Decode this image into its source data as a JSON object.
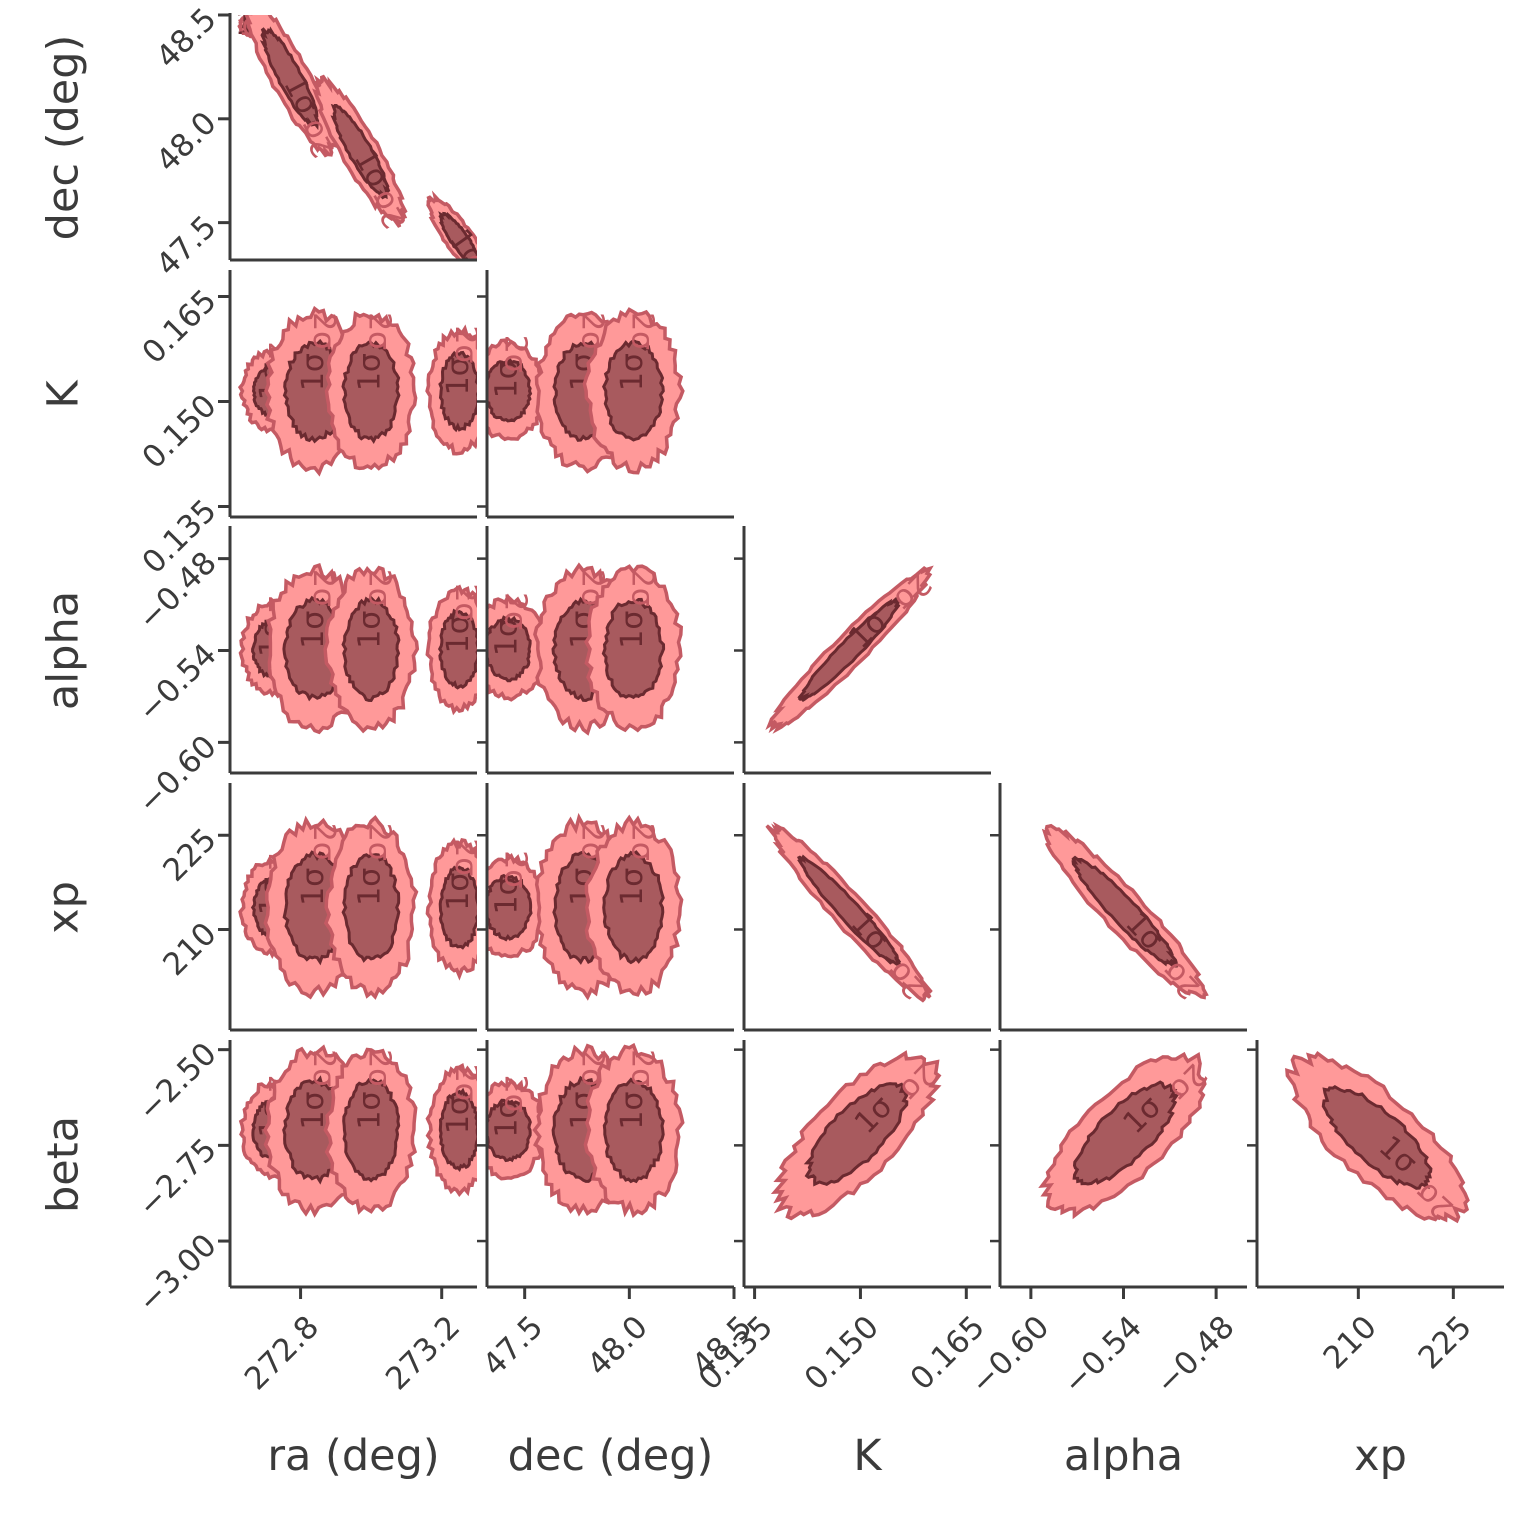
{
  "chart_data": {
    "type": "corner",
    "parameters": [
      {
        "key": "ra",
        "label": "ra (deg)",
        "range": [
          272.6,
          273.3
        ],
        "ticks": [
          "272.8",
          "273.2"
        ],
        "tick_values": [
          272.8,
          273.2
        ]
      },
      {
        "key": "dec",
        "label": "dec (deg)",
        "range": [
          47.32,
          48.5
        ],
        "ticks": [
          "47.5",
          "48.0",
          "48.5"
        ],
        "tick_values": [
          47.5,
          48.0,
          48.5
        ]
      },
      {
        "key": "K",
        "label": "K",
        "range": [
          0.1335,
          0.1685
        ],
        "ticks": [
          "0.135",
          "0.150",
          "0.165"
        ],
        "tick_values": [
          0.135,
          0.15,
          0.165
        ]
      },
      {
        "key": "alpha",
        "label": "alpha",
        "range": [
          -0.62,
          -0.46
        ],
        "ticks": [
          "−0.60",
          "−0.54",
          "−0.48"
        ],
        "tick_values": [
          -0.6,
          -0.54,
          -0.48
        ]
      },
      {
        "key": "xp",
        "label": "xp",
        "range": [
          194,
          233
        ],
        "ticks": [
          "210",
          "225"
        ],
        "tick_values": [
          210,
          225
        ]
      },
      {
        "key": "beta",
        "label": "beta",
        "range": [
          -3.12,
          -2.48
        ],
        "ticks": [
          "−2.50",
          "−2.75",
          "−3.00"
        ],
        "tick_values": [
          -2.5,
          -2.75,
          -3.0
        ]
      }
    ],
    "contour_levels": [
      "1σ",
      "2σ"
    ],
    "colors": {
      "fill_outer": "#ff9999",
      "line_outer": "#c45a63",
      "fill_inner": "#a85a5e",
      "line_inner": "#6b2a30",
      "axis": "#3b3b3b"
    },
    "panels": [
      {
        "x": "ra",
        "y": "dec",
        "blobs": [
          {
            "c": [
              272.66,
              48.45
            ],
            "s": [
              0.013,
              0.02
            ],
            "r": 0
          },
          {
            "c": [
              272.77,
              48.2
            ],
            "s": [
              0.05,
              0.15
            ],
            "r": -0.88
          },
          {
            "c": [
              272.97,
              47.84
            ],
            "s": [
              0.05,
              0.14
            ],
            "r": -0.88
          },
          {
            "c": [
              273.25,
              47.42
            ],
            "s": [
              0.035,
              0.08
            ],
            "r": -0.85
          }
        ]
      },
      {
        "x": "ra",
        "y": "K",
        "blobs": [
          {
            "c": [
              272.72,
              0.1515
            ],
            "s": [
              0.035,
              0.0023
            ],
            "r": 0
          },
          {
            "c": [
              272.84,
              0.1515
            ],
            "s": [
              0.055,
              0.0045
            ],
            "r": 0
          },
          {
            "c": [
              273.0,
              0.1515
            ],
            "s": [
              0.05,
              0.0045
            ],
            "r": 0
          },
          {
            "c": [
              273.25,
              0.1515
            ],
            "s": [
              0.035,
              0.0035
            ],
            "r": 0
          }
        ]
      },
      {
        "x": "dec",
        "y": "K",
        "blobs": [
          {
            "c": [
              47.42,
              0.1515
            ],
            "s": [
              0.07,
              0.0028
            ],
            "r": 0
          },
          {
            "c": [
              47.78,
              0.1515
            ],
            "s": [
              0.09,
              0.0045
            ],
            "r": 0
          },
          {
            "c": [
              48.02,
              0.1515
            ],
            "s": [
              0.09,
              0.0045
            ],
            "r": 0
          }
        ]
      },
      {
        "x": "ra",
        "y": "alpha",
        "blobs": [
          {
            "c": [
              272.72,
              -0.539
            ],
            "s": [
              0.035,
              0.012
            ],
            "r": 0
          },
          {
            "c": [
              272.84,
              -0.539
            ],
            "s": [
              0.055,
              0.021
            ],
            "r": 0
          },
          {
            "c": [
              273.0,
              -0.539
            ],
            "s": [
              0.05,
              0.021
            ],
            "r": 0
          },
          {
            "c": [
              273.25,
              -0.539
            ],
            "s": [
              0.035,
              0.016
            ],
            "r": 0
          }
        ]
      },
      {
        "x": "dec",
        "y": "alpha",
        "blobs": [
          {
            "c": [
              47.42,
              -0.539
            ],
            "s": [
              0.07,
              0.013
            ],
            "r": 0
          },
          {
            "c": [
              47.78,
              -0.539
            ],
            "s": [
              0.09,
              0.021
            ],
            "r": 0
          },
          {
            "c": [
              48.02,
              -0.539
            ],
            "s": [
              0.09,
              0.021
            ],
            "r": 0
          }
        ]
      },
      {
        "x": "K",
        "y": "alpha",
        "blobs": [
          {
            "c": [
              0.1485,
              -0.5395
            ],
            "s": [
              0.0045,
              0.021
            ],
            "r": 0.96
          }
        ]
      },
      {
        "x": "ra",
        "y": "xp",
        "blobs": [
          {
            "c": [
              272.72,
              213.5
            ],
            "s": [
              0.035,
              3.0
            ],
            "r": 0
          },
          {
            "c": [
              272.84,
              213.5
            ],
            "s": [
              0.055,
              5.5
            ],
            "r": 0
          },
          {
            "c": [
              273.0,
              213.5
            ],
            "s": [
              0.05,
              5.5
            ],
            "r": 0
          },
          {
            "c": [
              273.25,
              213.5
            ],
            "s": [
              0.035,
              4.2
            ],
            "r": 0
          }
        ]
      },
      {
        "x": "dec",
        "y": "xp",
        "blobs": [
          {
            "c": [
              47.42,
              213.5
            ],
            "s": [
              0.07,
              3.2
            ],
            "r": 0
          },
          {
            "c": [
              47.78,
              213.5
            ],
            "s": [
              0.09,
              5.5
            ],
            "r": 0
          },
          {
            "c": [
              48.02,
              213.5
            ],
            "s": [
              0.09,
              5.5
            ],
            "r": 0
          }
        ]
      },
      {
        "x": "K",
        "y": "xp",
        "blobs": [
          {
            "c": [
              0.1485,
              212.8
            ],
            "s": [
              0.0045,
              5.5
            ],
            "r": -0.96
          }
        ]
      },
      {
        "x": "alpha",
        "y": "xp",
        "blobs": [
          {
            "c": [
              -0.5395,
              212.8
            ],
            "s": [
              0.021,
              5.5
            ],
            "r": -0.94
          }
        ]
      },
      {
        "x": "ra",
        "y": "beta",
        "blobs": [
          {
            "c": [
              272.72,
              -2.71
            ],
            "s": [
              0.035,
              0.05
            ],
            "r": 0
          },
          {
            "c": [
              272.84,
              -2.71
            ],
            "s": [
              0.055,
              0.085
            ],
            "r": 0
          },
          {
            "c": [
              273.0,
              -2.71
            ],
            "s": [
              0.05,
              0.085
            ],
            "r": 0
          },
          {
            "c": [
              273.25,
              -2.71
            ],
            "s": [
              0.035,
              0.065
            ],
            "r": 0
          }
        ]
      },
      {
        "x": "dec",
        "y": "beta",
        "blobs": [
          {
            "c": [
              47.42,
              -2.71
            ],
            "s": [
              0.07,
              0.05
            ],
            "r": 0
          },
          {
            "c": [
              47.78,
              -2.71
            ],
            "s": [
              0.09,
              0.085
            ],
            "r": 0
          },
          {
            "c": [
              48.02,
              -2.71
            ],
            "s": [
              0.09,
              0.085
            ],
            "r": 0
          }
        ]
      },
      {
        "x": "K",
        "y": "beta",
        "blobs": [
          {
            "c": [
              0.1495,
              -2.72
            ],
            "s": [
              0.0045,
              0.085
            ],
            "r": 0.72
          }
        ]
      },
      {
        "x": "alpha",
        "y": "beta",
        "blobs": [
          {
            "c": [
              -0.539,
              -2.72
            ],
            "s": [
              0.021,
              0.085
            ],
            "r": 0.72
          }
        ]
      },
      {
        "x": "xp",
        "y": "beta",
        "blobs": [
          {
            "c": [
              213.0,
              -2.73
            ],
            "s": [
              5.5,
              0.085
            ],
            "r": -0.75
          }
        ]
      }
    ]
  }
}
